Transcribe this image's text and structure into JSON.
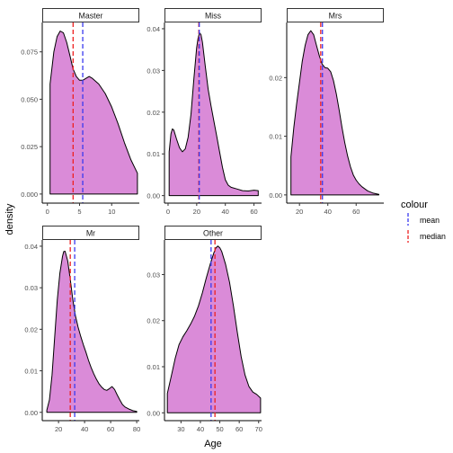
{
  "colors": {
    "fill": "#da8bd8",
    "outline": "#000000",
    "mean": "#3a3af0",
    "median": "#ee2020",
    "strip_fill": "#ffffff",
    "panel_bg": "#ffffff"
  },
  "chart_data": {
    "type": "area",
    "xlabel": "Age",
    "ylabel": "density",
    "legend": {
      "title": "colour",
      "placement": "right",
      "entries": [
        {
          "label": "mean",
          "color": "#3a3af0"
        },
        {
          "label": "median",
          "color": "#ee2020"
        }
      ]
    },
    "facet_grid": {
      "columns": 3,
      "rows": 2
    },
    "panels": [
      {
        "title": "Master",
        "xlim": [
          -0.8,
          14.3
        ],
        "ylim": [
          -0.0048,
          0.0905
        ],
        "xticks": [
          0,
          5,
          10
        ],
        "yticks": [
          0,
          0.025,
          0.05,
          0.075
        ],
        "ytick_labels": [
          "0.000",
          "0.025",
          "0.050",
          "0.075"
        ],
        "mean": 5.5,
        "median": 4.0,
        "density": [
          [
            0.42,
            0.058
          ],
          [
            1,
            0.075
          ],
          [
            1.5,
            0.083
          ],
          [
            2,
            0.086
          ],
          [
            2.5,
            0.085
          ],
          [
            3,
            0.08
          ],
          [
            3.5,
            0.073
          ],
          [
            4,
            0.066
          ],
          [
            4.5,
            0.062
          ],
          [
            5,
            0.06
          ],
          [
            5.5,
            0.06
          ],
          [
            6,
            0.061
          ],
          [
            6.5,
            0.062
          ],
          [
            7,
            0.061
          ],
          [
            8,
            0.058
          ],
          [
            9,
            0.053
          ],
          [
            10,
            0.046
          ],
          [
            11,
            0.037
          ],
          [
            12,
            0.027
          ],
          [
            13,
            0.018
          ],
          [
            14,
            0.011
          ]
        ]
      },
      {
        "title": "Miss",
        "xlim": [
          -2.5,
          65.3
        ],
        "ylim": [
          -0.0018,
          0.0415
        ],
        "xticks": [
          0,
          20,
          40,
          60
        ],
        "yticks": [
          0,
          0.01,
          0.02,
          0.03,
          0.04
        ],
        "ytick_labels": [
          "0.00",
          "0.01",
          "0.02",
          "0.03",
          "0.04"
        ],
        "mean": 21.8,
        "median": 21.5,
        "density": [
          [
            0.75,
            0.0105
          ],
          [
            2,
            0.0148
          ],
          [
            3,
            0.016
          ],
          [
            4,
            0.0157
          ],
          [
            6,
            0.0135
          ],
          [
            8,
            0.0115
          ],
          [
            10,
            0.0105
          ],
          [
            12,
            0.0112
          ],
          [
            14,
            0.014
          ],
          [
            16,
            0.0195
          ],
          [
            18,
            0.028
          ],
          [
            20,
            0.0355
          ],
          [
            21,
            0.0378
          ],
          [
            22,
            0.039
          ],
          [
            23,
            0.0386
          ],
          [
            24,
            0.0368
          ],
          [
            26,
            0.031
          ],
          [
            28,
            0.0255
          ],
          [
            30,
            0.0215
          ],
          [
            32,
            0.0178
          ],
          [
            34,
            0.0143
          ],
          [
            36,
            0.0105
          ],
          [
            38,
            0.0068
          ],
          [
            40,
            0.0038
          ],
          [
            42,
            0.0025
          ],
          [
            44,
            0.002
          ],
          [
            48,
            0.0016
          ],
          [
            52,
            0.0012
          ],
          [
            56,
            0.0011
          ],
          [
            60,
            0.0013
          ],
          [
            63,
            0.0012
          ]
        ]
      },
      {
        "title": "Mrs",
        "xlim": [
          11,
          79.5
        ],
        "ylim": [
          -0.0014,
          0.0294
        ],
        "xticks": [
          20,
          40,
          60
        ],
        "yticks": [
          0,
          0.01,
          0.02
        ],
        "ytick_labels": [
          "0.00",
          "0.01",
          "0.02"
        ],
        "mean": 36.2,
        "median": 35.0,
        "density": [
          [
            14,
            0.0065
          ],
          [
            16,
            0.0115
          ],
          [
            18,
            0.0155
          ],
          [
            20,
            0.0192
          ],
          [
            22,
            0.0228
          ],
          [
            24,
            0.0255
          ],
          [
            26,
            0.0273
          ],
          [
            28,
            0.028
          ],
          [
            30,
            0.0273
          ],
          [
            32,
            0.0255
          ],
          [
            34,
            0.0237
          ],
          [
            36,
            0.0223
          ],
          [
            38,
            0.0217
          ],
          [
            40,
            0.0216
          ],
          [
            42,
            0.021
          ],
          [
            44,
            0.0195
          ],
          [
            46,
            0.0172
          ],
          [
            48,
            0.0145
          ],
          [
            50,
            0.0115
          ],
          [
            52,
            0.0089
          ],
          [
            54,
            0.0066
          ],
          [
            56,
            0.0048
          ],
          [
            58,
            0.0034
          ],
          [
            60,
            0.0025
          ],
          [
            62,
            0.0019
          ],
          [
            64,
            0.0014
          ],
          [
            68,
            0.0007
          ],
          [
            72,
            0.0003
          ],
          [
            76,
            0.0001
          ]
        ]
      },
      {
        "title": "Mr",
        "xlim": [
          7.5,
          82
        ],
        "ylim": [
          -0.002,
          0.0415
        ],
        "xticks": [
          20,
          40,
          60,
          80
        ],
        "yticks": [
          0,
          0.01,
          0.02,
          0.03,
          0.04
        ],
        "ytick_labels": [
          "0.00",
          "0.01",
          "0.02",
          "0.03",
          "0.04"
        ],
        "mean": 32.4,
        "median": 29.0,
        "density": [
          [
            11,
            0.0005
          ],
          [
            13,
            0.003
          ],
          [
            15,
            0.009
          ],
          [
            17,
            0.018
          ],
          [
            19,
            0.027
          ],
          [
            21,
            0.0335
          ],
          [
            23,
            0.0375
          ],
          [
            24,
            0.0387
          ],
          [
            25,
            0.0388
          ],
          [
            27,
            0.0365
          ],
          [
            29,
            0.032
          ],
          [
            31,
            0.027
          ],
          [
            33,
            0.0232
          ],
          [
            35,
            0.0205
          ],
          [
            37,
            0.0183
          ],
          [
            39,
            0.0163
          ],
          [
            41,
            0.0145
          ],
          [
            43,
            0.0125
          ],
          [
            45,
            0.0108
          ],
          [
            47,
            0.0093
          ],
          [
            49,
            0.008
          ],
          [
            51,
            0.0069
          ],
          [
            53,
            0.0061
          ],
          [
            55,
            0.0055
          ],
          [
            57,
            0.0053
          ],
          [
            59,
            0.0057
          ],
          [
            61,
            0.0062
          ],
          [
            63,
            0.0055
          ],
          [
            65,
            0.0042
          ],
          [
            67,
            0.003
          ],
          [
            69,
            0.0019
          ],
          [
            71,
            0.0013
          ],
          [
            74,
            0.0008
          ],
          [
            77,
            0.0004
          ],
          [
            80,
            0.0002
          ]
        ]
      },
      {
        "title": "Other",
        "xlim": [
          21.5,
          71.5
        ],
        "ylim": [
          -0.0017,
          0.0375
        ],
        "xticks": [
          30,
          40,
          50,
          60,
          70
        ],
        "yticks": [
          0,
          0.01,
          0.02,
          0.03
        ],
        "ytick_labels": [
          "0.00",
          "0.01",
          "0.02",
          "0.03"
        ],
        "mean": 45.5,
        "median": 47.5,
        "density": [
          [
            23,
            0.0042
          ],
          [
            25,
            0.008
          ],
          [
            27,
            0.0118
          ],
          [
            29,
            0.0148
          ],
          [
            31,
            0.0165
          ],
          [
            33,
            0.0178
          ],
          [
            35,
            0.0193
          ],
          [
            37,
            0.021
          ],
          [
            39,
            0.0232
          ],
          [
            41,
            0.026
          ],
          [
            43,
            0.0292
          ],
          [
            45,
            0.0322
          ],
          [
            47,
            0.0348
          ],
          [
            48,
            0.0358
          ],
          [
            49,
            0.0362
          ],
          [
            50,
            0.0358
          ],
          [
            51,
            0.035
          ],
          [
            53,
            0.0322
          ],
          [
            55,
            0.0283
          ],
          [
            57,
            0.0232
          ],
          [
            59,
            0.0175
          ],
          [
            61,
            0.0122
          ],
          [
            63,
            0.0082
          ],
          [
            65,
            0.0057
          ],
          [
            67,
            0.0045
          ],
          [
            69,
            0.004
          ],
          [
            71,
            0.0032
          ]
        ]
      }
    ]
  }
}
